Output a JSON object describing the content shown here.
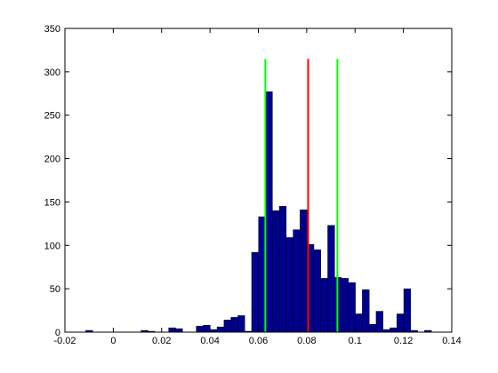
{
  "chart_data": {
    "type": "histogram",
    "bins": [
      -0.0114,
      -0.00854,
      -0.00568,
      -0.00282,
      4e-05,
      0.0029,
      0.00576,
      0.00862,
      0.01148,
      0.01434,
      0.0172,
      0.02006,
      0.02292,
      0.02578,
      0.02864,
      0.0315,
      0.03436,
      0.03722,
      0.04008,
      0.04294,
      0.0458,
      0.04866,
      0.05152,
      0.05438,
      0.05724,
      0.0601,
      0.06296,
      0.06582,
      0.06868,
      0.07154,
      0.0744,
      0.07726,
      0.08012,
      0.08298,
      0.08584,
      0.0887,
      0.09156,
      0.09442,
      0.09728,
      0.10014,
      0.103,
      0.10586,
      0.10872,
      0.11158,
      0.11444,
      0.1173,
      0.12016,
      0.12302,
      0.12588,
      0.12874,
      0.1316
    ],
    "values": [
      2,
      0,
      0,
      0,
      0,
      0,
      0,
      0,
      2,
      1,
      0,
      0,
      5,
      4,
      0,
      0,
      7,
      8,
      3,
      6,
      14,
      17,
      19,
      1,
      92,
      133,
      277,
      140,
      145,
      109,
      118,
      141,
      101,
      95,
      62,
      123,
      63,
      62,
      57,
      21,
      49,
      9,
      24,
      3,
      5,
      21,
      50,
      2,
      0,
      2
    ],
    "color": "#00008f",
    "vlines": [
      {
        "x": 0.0629,
        "top": 315,
        "color": "#00ff00"
      },
      {
        "x": 0.0806,
        "top": 315,
        "color": "#ff0000"
      },
      {
        "x": 0.0927,
        "top": 315,
        "color": "#00ff00"
      }
    ],
    "xlim": [
      -0.02,
      0.14
    ],
    "xticks": [
      -0.02,
      0,
      0.02,
      0.04,
      0.06,
      0.08,
      0.1,
      0.12,
      0.14
    ],
    "ylim": [
      0,
      350
    ],
    "yticks": [
      0,
      50,
      100,
      150,
      200,
      250,
      300,
      350
    ]
  }
}
